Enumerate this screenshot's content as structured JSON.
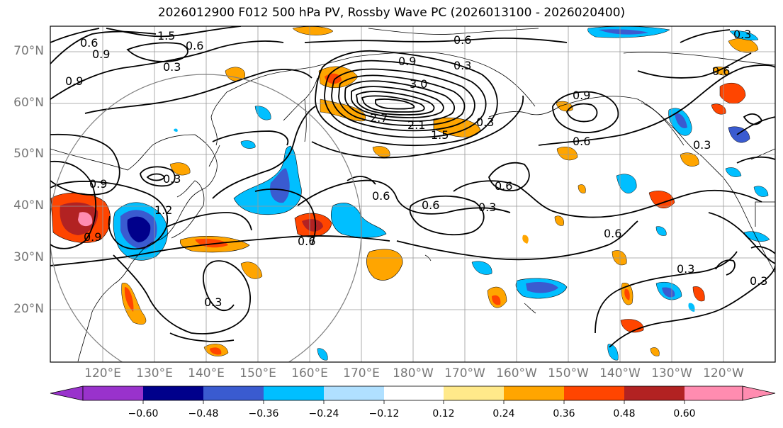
{
  "title": "2026012900 F012 500 hPa PV, Rossby Wave PC (2026013100 - 2026020400)",
  "lat_labels": [
    "70°N",
    "60°N",
    "50°N",
    "40°N",
    "30°N",
    "20°N"
  ],
  "lon_labels": [
    "120°E",
    "130°E",
    "140°E",
    "150°E",
    "160°E",
    "170°E",
    "180°W",
    "170°W",
    "160°W",
    "150°W",
    "140°W",
    "130°W",
    "120°W"
  ],
  "colorbar": {
    "colors": [
      "#9932cc",
      "#00008b",
      "#3a5bd0",
      "#00bfff",
      "#b0e0ff",
      "#ffffff",
      "#ffe98a",
      "#ffa500",
      "#ff4500",
      "#b22222",
      "#ff8cb0"
    ],
    "tick_labels": [
      "−0.60",
      "−0.48",
      "−0.36",
      "−0.24",
      "−0.12",
      "0.12",
      "0.24",
      "0.36",
      "0.48",
      "0.60"
    ]
  },
  "contour_labels": [
    "1.5",
    "0.6",
    "0.9",
    "0.3",
    "0.6",
    "0.9",
    "0.3",
    "0.6",
    "0.9",
    "0.3",
    "3.0",
    "2.7",
    "2.1",
    "1.5",
    "0.3",
    "0.9",
    "0.6",
    "0.9",
    "1.2",
    "0.9",
    "0.6",
    "0.6",
    "0.6",
    "0.3",
    "0.6",
    "0.3",
    "0.6",
    "0.3",
    "0.6",
    "0.3",
    "0.3",
    "0.3"
  ],
  "colors": {
    "contour": "#000000",
    "grid": "#999999",
    "coast": "#000000",
    "circle": "#808080",
    "axis_label": "#777777"
  }
}
